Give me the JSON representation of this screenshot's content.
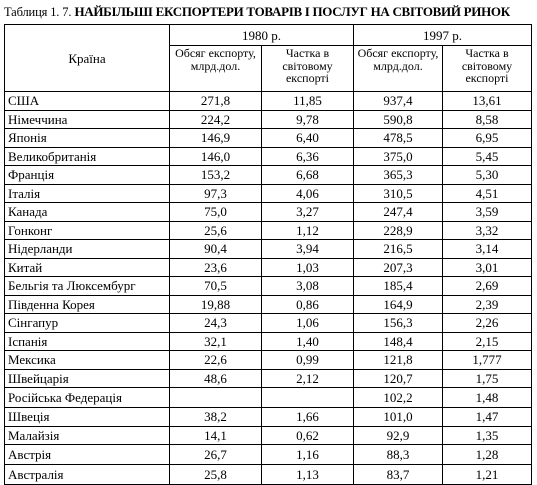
{
  "caption": {
    "number": "Таблиця 1. 7.",
    "title": "НАЙБІЛЬШІ ЕКСПОРТЕРИ ТОВАРІВ І ПОСЛУГ НА СВІТОВИЙ РИНОК"
  },
  "table": {
    "country_header": "Країна",
    "years": [
      "1980 р.",
      "1997 р."
    ],
    "sub_headers": [
      "Обсяг експорту, млрд.дол.",
      "Частка в світовому експорті",
      "Обсяг експорту, млрд.дол.",
      "Частка в світовому експорті"
    ],
    "rows": [
      {
        "country": "США",
        "v1980": "271,8",
        "s1980": "11,85",
        "v1997": "937,4",
        "s1997": "13,61"
      },
      {
        "country": "Німеччина",
        "v1980": "224,2",
        "s1980": "9,78",
        "v1997": "590,8",
        "s1997": "8,58"
      },
      {
        "country": "Японія",
        "v1980": "146,9",
        "s1980": "6,40",
        "v1997": "478,5",
        "s1997": "6,95"
      },
      {
        "country": "Великобританія",
        "v1980": "146,0",
        "s1980": "6,36",
        "v1997": "375,0",
        "s1997": "5,45"
      },
      {
        "country": "Франція",
        "v1980": "153,2",
        "s1980": "6,68",
        "v1997": "365,3",
        "s1997": "5,30"
      },
      {
        "country": "Італія",
        "v1980": "97,3",
        "s1980": "4,06",
        "v1997": "310,5",
        "s1997": "4,51"
      },
      {
        "country": "Канада",
        "v1980": "75,0",
        "s1980": "3,27",
        "v1997": "247,4",
        "s1997": "3,59"
      },
      {
        "country": "Гонконг",
        "v1980": "25,6",
        "s1980": "1,12",
        "v1997": "228,9",
        "s1997": "3,32"
      },
      {
        "country": "Нідерланди",
        "v1980": "90,4",
        "s1980": "3,94",
        "v1997": "216,5",
        "s1997": "3,14"
      },
      {
        "country": "Китай",
        "v1980": "23,6",
        "s1980": "1,03",
        "v1997": "207,3",
        "s1997": "3,01"
      },
      {
        "country": "Бельгія та Люксембург",
        "v1980": "70,5",
        "s1980": "3,08",
        "v1997": "185,4",
        "s1997": "2,69"
      },
      {
        "country": "Південна Корея",
        "v1980": "19,88",
        "s1980": "0,86",
        "v1997": "164,9",
        "s1997": "2,39"
      },
      {
        "country": "Сінгапур",
        "v1980": "24,3",
        "s1980": "1,06",
        "v1997": "156,3",
        "s1997": "2,26"
      },
      {
        "country": "Іспанія",
        "v1980": "32,1",
        "s1980": "1,40",
        "v1997": "148,4",
        "s1997": "2,15"
      },
      {
        "country": "Мексика",
        "v1980": "22,6",
        "s1980": "0,99",
        "v1997": "121,8",
        "s1997": "1,777"
      },
      {
        "country": "Швейцарія",
        "v1980": "48,6",
        "s1980": "2,12",
        "v1997": "120,7",
        "s1997": "1,75"
      },
      {
        "country": "Російська Федерація",
        "v1980": "",
        "s1980": "",
        "v1997": "102,2",
        "s1997": "1,48"
      },
      {
        "country": "Швеція",
        "v1980": "38,2",
        "s1980": "1,66",
        "v1997": "101,0",
        "s1997": "1,47"
      },
      {
        "country": "Малайзія",
        "v1980": "14,1",
        "s1980": "0,62",
        "v1997": "92,9",
        "s1997": "1,35"
      },
      {
        "country": "Австрія",
        "v1980": "26,7",
        "s1980": "1,16",
        "v1997": "88,3",
        "s1997": "1,28"
      },
      {
        "country": "Австралія",
        "v1980": "25,8",
        "s1980": "1,13",
        "v1997": "83,7",
        "s1997": "1,21"
      }
    ]
  }
}
